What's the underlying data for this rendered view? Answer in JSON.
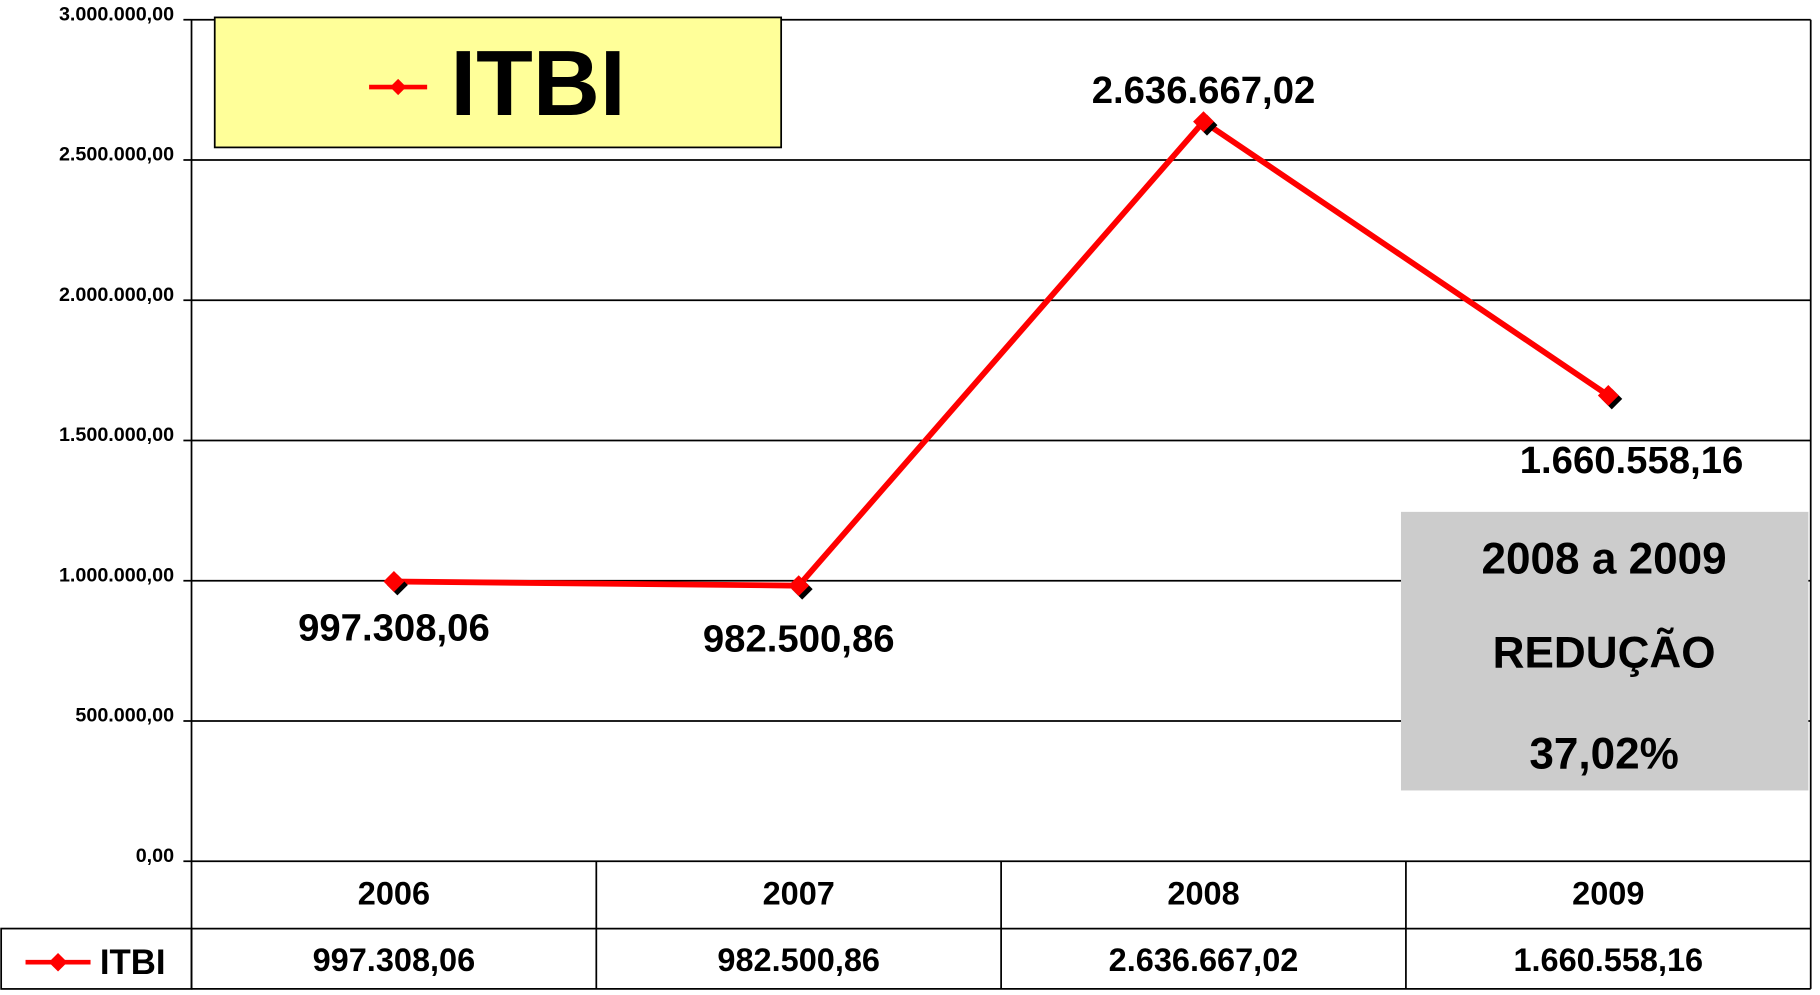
{
  "chart_data": {
    "type": "line",
    "categories": [
      "2006",
      "2007",
      "2008",
      "2009"
    ],
    "series": [
      {
        "name": "ITBI",
        "color": "#ff0000",
        "values": [
          997308.06,
          982500.86,
          2636667.02,
          1660558.16
        ],
        "value_labels": [
          "997.308,06",
          "982.500,86",
          "2.636.667,02",
          "1.660.558,16"
        ]
      }
    ],
    "ylim": [
      0,
      3000000
    ],
    "yticks": [
      {
        "value": 0,
        "label": "0,00"
      },
      {
        "value": 500000,
        "label": "500.000,00"
      },
      {
        "value": 1000000,
        "label": "1.000.000,00"
      },
      {
        "value": 1500000,
        "label": "1.500.000,00"
      },
      {
        "value": 2000000,
        "label": "2.000.000,00"
      },
      {
        "value": 2500000,
        "label": "2.500.000,00"
      },
      {
        "value": 3000000,
        "label": "3.000.000,00"
      }
    ],
    "grid": true,
    "legend": "top-left",
    "data_table": true,
    "annotation": [
      "2008 a 2009",
      "REDUÇÃO",
      "37,02%"
    ]
  }
}
